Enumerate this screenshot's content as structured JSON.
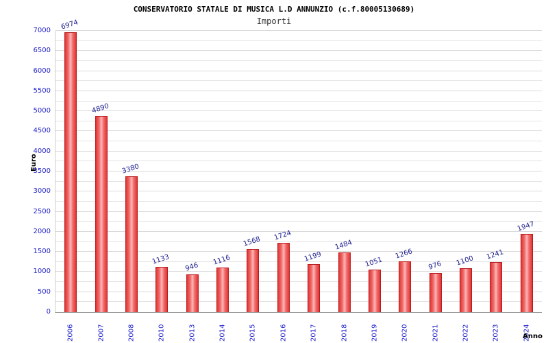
{
  "chart_data": {
    "type": "bar",
    "title": "CONSERVATORIO STATALE DI MUSICA L.D ANNUNZIO (c.f.80005130689)",
    "subtitle": "Importi",
    "categories": [
      "2006",
      "2007",
      "2008",
      "2010",
      "2013",
      "2014",
      "2015",
      "2016",
      "2017",
      "2018",
      "2019",
      "2020",
      "2021",
      "2022",
      "2023",
      "2024"
    ],
    "values": [
      6974,
      4890,
      3380,
      1133,
      946,
      1116,
      1568,
      1724,
      1199,
      1484,
      1051,
      1266,
      976,
      1100,
      1241,
      1947
    ],
    "xlabel": "Anno",
    "ylabel": "Euro",
    "ylim": [
      0,
      7000
    ],
    "ytick_step": 500,
    "grid": true,
    "legend": "none",
    "colors": {
      "bar_fill": "#e23434",
      "bar_highlight": "#ffb8b8",
      "bar_border": "#b71c1c",
      "tick_label": "#2222cc",
      "value_label": "#1a1a8c",
      "title": "#000000"
    }
  }
}
